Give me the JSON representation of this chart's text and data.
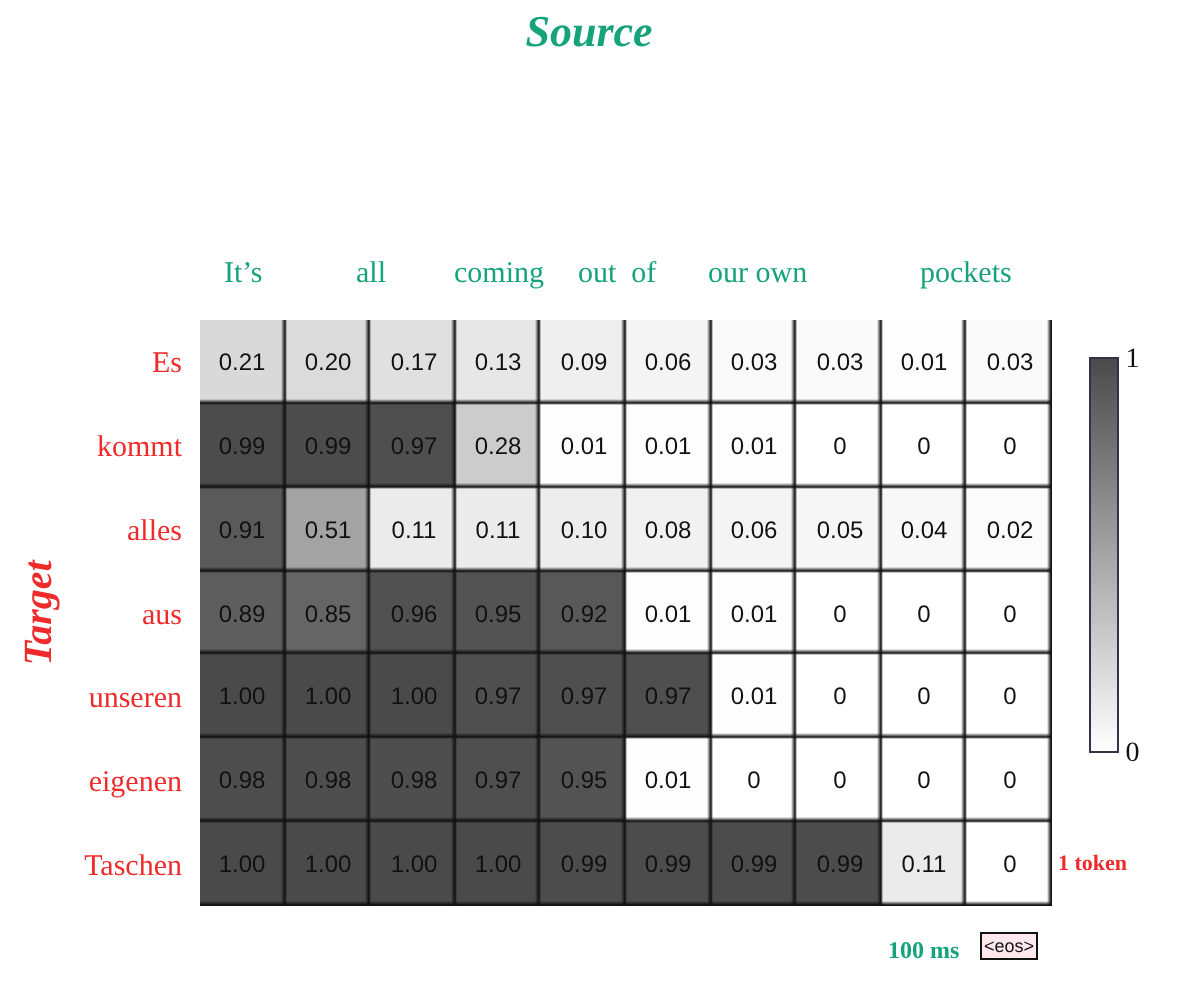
{
  "chart_data": {
    "type": "heatmap",
    "title": "Source",
    "ylabel": "Target",
    "categories": [
      null,
      null,
      null,
      null,
      null,
      null,
      null,
      null,
      null,
      null
    ],
    "y_categories": [
      "Es",
      "kommt",
      "alles",
      "aus",
      "unseren",
      "eigenen",
      "Taschen"
    ],
    "cells": [
      [
        0.21,
        0.2,
        0.17,
        0.13,
        0.09,
        0.06,
        0.03,
        0.03,
        0.01,
        0.03
      ],
      [
        0.99,
        0.99,
        0.97,
        0.28,
        0.01,
        0.01,
        0.01,
        0,
        0,
        0
      ],
      [
        0.91,
        0.51,
        0.11,
        0.11,
        0.1,
        0.08,
        0.06,
        0.05,
        0.04,
        0.02
      ],
      [
        0.89,
        0.85,
        0.96,
        0.95,
        0.92,
        0.01,
        0.01,
        0,
        0,
        0
      ],
      [
        1.0,
        1.0,
        1.0,
        0.97,
        0.97,
        0.97,
        0.01,
        0,
        0,
        0
      ],
      [
        0.98,
        0.98,
        0.98,
        0.97,
        0.95,
        0.01,
        0,
        0,
        0,
        0
      ],
      [
        1.0,
        1.0,
        1.0,
        1.0,
        0.99,
        0.99,
        0.99,
        0.99,
        0.11,
        0
      ]
    ],
    "cell_labels": [
      [
        "0.21",
        "0.20",
        "0.17",
        "0.13",
        "0.09",
        "0.06",
        "0.03",
        "0.03",
        "0.01",
        "0.03"
      ],
      [
        "0.99",
        "0.99",
        "0.97",
        "0.28",
        "0.01",
        "0.01",
        "0.01",
        "0",
        "0",
        "0"
      ],
      [
        "0.91",
        "0.51",
        "0.11",
        "0.11",
        "0.10",
        "0.08",
        "0.06",
        "0.05",
        "0.04",
        "0.02"
      ],
      [
        "0.89",
        "0.85",
        "0.96",
        "0.95",
        "0.92",
        "0.01",
        "0.01",
        "0",
        "0",
        "0"
      ],
      [
        "1.00",
        "1.00",
        "1.00",
        "0.97",
        "0.97",
        "0.97",
        "0.01",
        "0",
        "0",
        "0"
      ],
      [
        "0.98",
        "0.98",
        "0.98",
        "0.97",
        "0.95",
        "0.01",
        "0",
        "0",
        "0",
        "0"
      ],
      [
        "1.00",
        "1.00",
        "1.00",
        "1.00",
        "0.99",
        "0.99",
        "0.99",
        "0.99",
        "0.11",
        "0"
      ]
    ],
    "clim": [
      0,
      1
    ],
    "cticks": [
      0,
      1
    ],
    "annotations": [
      "It’s",
      "all",
      "coming",
      "out  of",
      "our own",
      "pockets",
      "1 token",
      "100 ms",
      "<eos>"
    ]
  }
}
